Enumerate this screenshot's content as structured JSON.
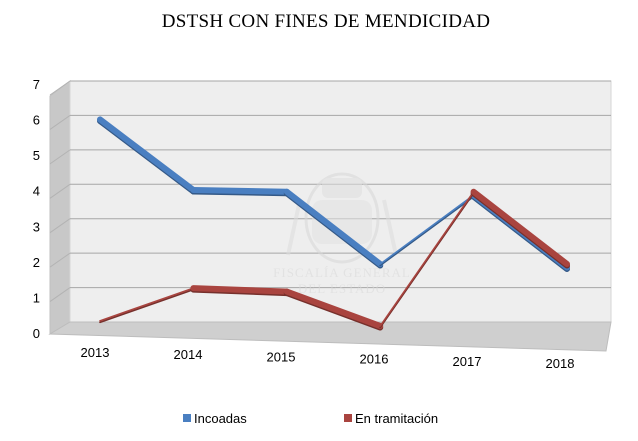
{
  "chart_data": {
    "type": "line",
    "title": "DSTSH CON FINES DE MENDICIDAD",
    "categories": [
      "2013",
      "2014",
      "2015",
      "2016",
      "2017",
      "2018"
    ],
    "series": [
      {
        "name": "Incoadas",
        "values": [
          6,
          3.95,
          3.9,
          1.8,
          3.8,
          1.7
        ],
        "color": "#4a7fc1"
      },
      {
        "name": "En tramitación",
        "values": [
          0.15,
          1.1,
          1.0,
          0,
          3.9,
          1.8
        ],
        "color": "#a9443f"
      }
    ],
    "ylim": [
      0,
      7
    ],
    "yticks": [
      "0",
      "1",
      "2",
      "3",
      "4",
      "5",
      "6",
      "7"
    ],
    "grid": true,
    "legend": "bottom",
    "watermark": [
      "FISCALÍA GENERAL",
      "DEL ESTADO"
    ]
  }
}
